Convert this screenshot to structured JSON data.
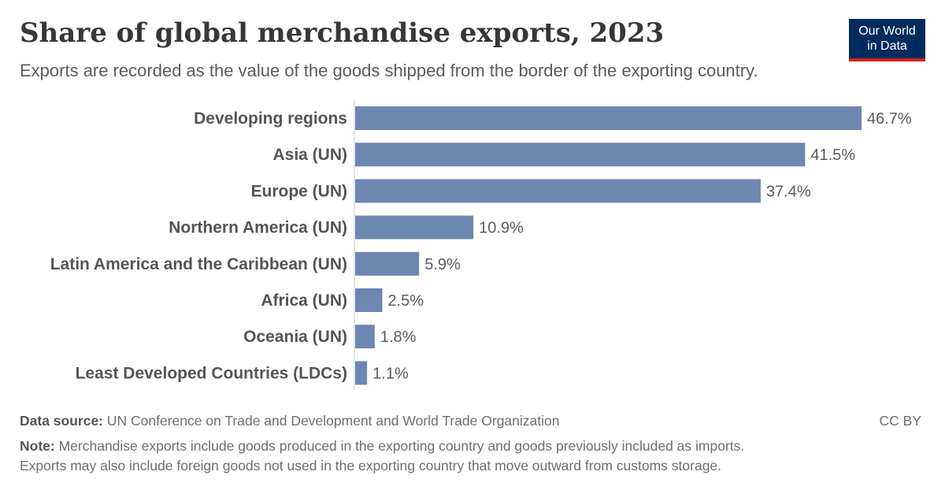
{
  "header": {
    "title": "Share of global merchandise exports, 2023",
    "subtitle": "Exports are recorded as the value of the goods shipped from the border of the exporting country.",
    "logo_line1": "Our World",
    "logo_line2": "in Data"
  },
  "chart_data": {
    "type": "bar",
    "orientation": "horizontal",
    "categories": [
      "Developing regions",
      "Asia (UN)",
      "Europe (UN)",
      "Northern America (UN)",
      "Latin America and the Caribbean (UN)",
      "Africa (UN)",
      "Oceania (UN)",
      "Least Developed Countries (LDCs)"
    ],
    "values": [
      46.7,
      41.5,
      37.4,
      10.9,
      5.9,
      2.5,
      1.8,
      1.1
    ],
    "value_labels": [
      "46.7%",
      "41.5%",
      "37.4%",
      "10.9%",
      "5.9%",
      "2.5%",
      "1.8%",
      "1.1%"
    ],
    "xlim": [
      0,
      46.7
    ],
    "bar_color": "#6d87b1",
    "grid": false
  },
  "footer": {
    "source_label": "Data source:",
    "source_text": "UN Conference on Trade and Development and World Trade Organization",
    "license": "CC BY",
    "note_label": "Note:",
    "note_line1": "Merchandise exports include goods produced in the exporting country and goods previously included as imports.",
    "note_line2": "Exports may also include foreign goods not used in the exporting country that move outward from customs storage."
  },
  "colors": {
    "title": "#373737",
    "logo_bg": "#002b5e",
    "logo_accent": "#ce261e",
    "bar": "#6d87b1"
  }
}
